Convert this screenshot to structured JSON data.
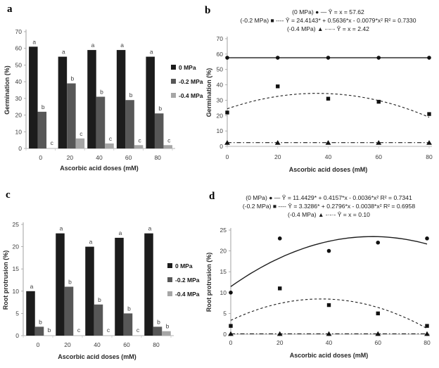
{
  "figure": {
    "background": "#ffffff",
    "panel_labels": [
      "a",
      "b",
      "c",
      "d"
    ]
  },
  "colors": {
    "series_0mpa": "#1c1c1c",
    "series_02mpa": "#575757",
    "series_04mpa": "#a6a6a6",
    "axis_line": "#a0a0a0",
    "baseline": "#b5b5b5",
    "line_black": "#1c1c1c"
  },
  "chart_data": [
    {
      "panel": "a",
      "type": "bar",
      "xlabel": "Ascorbic acid doses (mM)",
      "ylabel": "Germination (%)",
      "categories": [
        "0",
        "20",
        "40",
        "60",
        "80"
      ],
      "yticks": [
        0,
        10,
        20,
        30,
        40,
        50,
        60,
        70
      ],
      "ylim": [
        0,
        70
      ],
      "legend_position": "right",
      "series": [
        {
          "name": "0 MPa",
          "color": "#1c1c1c",
          "values": [
            61,
            55,
            59,
            59,
            55
          ],
          "letters": [
            "a",
            "a",
            "a",
            "a",
            "a"
          ]
        },
        {
          "name": "-0.2 MPa",
          "color": "#575757",
          "values": [
            22,
            39,
            31,
            29,
            21
          ],
          "letters": [
            "b",
            "b",
            "b",
            "b",
            "b"
          ]
        },
        {
          "name": "-0.4 MPa",
          "color": "#a6a6a6",
          "values": [
            0,
            6,
            3,
            2,
            2
          ],
          "letters": [
            "c",
            "c",
            "c",
            "c",
            "c"
          ]
        }
      ]
    },
    {
      "panel": "b",
      "type": "scatter",
      "xlabel": "Ascorbic acid doses (mM)",
      "ylabel": "Germination (%)",
      "x": [
        0,
        20,
        40,
        60,
        80
      ],
      "xticks": [
        "0",
        "20",
        "40",
        "60",
        "80"
      ],
      "yticks": [
        0,
        10,
        20,
        30,
        40,
        50,
        60,
        70
      ],
      "xlim": [
        0,
        80
      ],
      "ylim": [
        0,
        70
      ],
      "equations": [
        "(0 MPa) ● — Ŷ = x = 57.62",
        "(-0.2 MPa) ■ ---- Ŷ = 24.4143* + 0.5636*x - 0.0079*x²   R² = 0.7330",
        "(-0.4 MPa) ▲ -·-·- Ŷ = x = 2.42"
      ],
      "series": [
        {
          "name": "0 MPa",
          "marker": "circle",
          "line": "solid",
          "points": [
            57.62,
            57.62,
            57.62,
            57.62,
            57.62
          ],
          "fit": {
            "type": "constant",
            "value": 57.62
          }
        },
        {
          "name": "-0.2 MPa",
          "marker": "square",
          "line": "dashed",
          "points": [
            22,
            39,
            31,
            29,
            21
          ],
          "fit": {
            "type": "quadratic",
            "b0": 24.4143,
            "b1": 0.5636,
            "b2": -0.0079,
            "r2": 0.733
          }
        },
        {
          "name": "-0.4 MPa",
          "marker": "triangle",
          "line": "dashdot",
          "points": [
            2.42,
            2.42,
            2.42,
            2.42,
            2.42
          ],
          "fit": {
            "type": "constant",
            "value": 2.42
          }
        }
      ]
    },
    {
      "panel": "c",
      "type": "bar",
      "xlabel": "Ascorbic acid doses (mM)",
      "ylabel": "Root protrusion (%)",
      "categories": [
        "0",
        "20",
        "40",
        "60",
        "80"
      ],
      "yticks": [
        0,
        5,
        10,
        15,
        20,
        25
      ],
      "ylim": [
        0,
        25
      ],
      "legend_position": "right",
      "series": [
        {
          "name": "0 MPa",
          "color": "#1c1c1c",
          "values": [
            10,
            23,
            20,
            22,
            23
          ],
          "letters": [
            "a",
            "a",
            "a",
            "a",
            "a"
          ]
        },
        {
          "name": "-0.2 MPa",
          "color": "#575757",
          "values": [
            2,
            11,
            7,
            5,
            2
          ],
          "letters": [
            "b",
            "b",
            "b",
            "b",
            "b"
          ]
        },
        {
          "name": "-0.4 MPa",
          "color": "#a6a6a6",
          "values": [
            0,
            0,
            0,
            0,
            1
          ],
          "letters": [
            "b",
            "c",
            "c",
            "c",
            "b"
          ]
        }
      ]
    },
    {
      "panel": "d",
      "type": "scatter",
      "xlabel": "Ascorbic acid doses (mM)",
      "ylabel": "Root protrusion (%)",
      "x": [
        0,
        20,
        40,
        60,
        80
      ],
      "xticks": [
        "0",
        "20",
        "40",
        "60",
        "80"
      ],
      "yticks": [
        0,
        5,
        10,
        15,
        20,
        25
      ],
      "xlim": [
        0,
        80
      ],
      "ylim": [
        0,
        25
      ],
      "equations": [
        "(0 MPa) ● — Ŷ = 11.4429* + 0.4157*x - 0.0036*x²   R² = 0.7341",
        "(-0.2 MPa) ■ ---- Ŷ = 3.3286* + 0.2796*x - 0.0038*x²   R² = 0.6958",
        "(-0.4 MPa) ▲ -·-·- Ŷ = x = 0.10"
      ],
      "series": [
        {
          "name": "0 MPa",
          "marker": "circle",
          "line": "solid",
          "points": [
            10,
            23,
            20,
            22,
            23
          ],
          "fit": {
            "type": "quadratic",
            "b0": 11.4429,
            "b1": 0.4157,
            "b2": -0.0036,
            "r2": 0.7341
          }
        },
        {
          "name": "-0.2 MPa",
          "marker": "square",
          "line": "dashed",
          "points": [
            2,
            11,
            7,
            5,
            2
          ],
          "fit": {
            "type": "quadratic",
            "b0": 3.3286,
            "b1": 0.2796,
            "b2": -0.0038,
            "r2": 0.6958
          }
        },
        {
          "name": "-0.4 MPa",
          "marker": "triangle",
          "line": "dashdot",
          "points": [
            0.1,
            0.1,
            0.1,
            0.1,
            0.1
          ],
          "fit": {
            "type": "constant",
            "value": 0.1
          }
        }
      ]
    }
  ]
}
